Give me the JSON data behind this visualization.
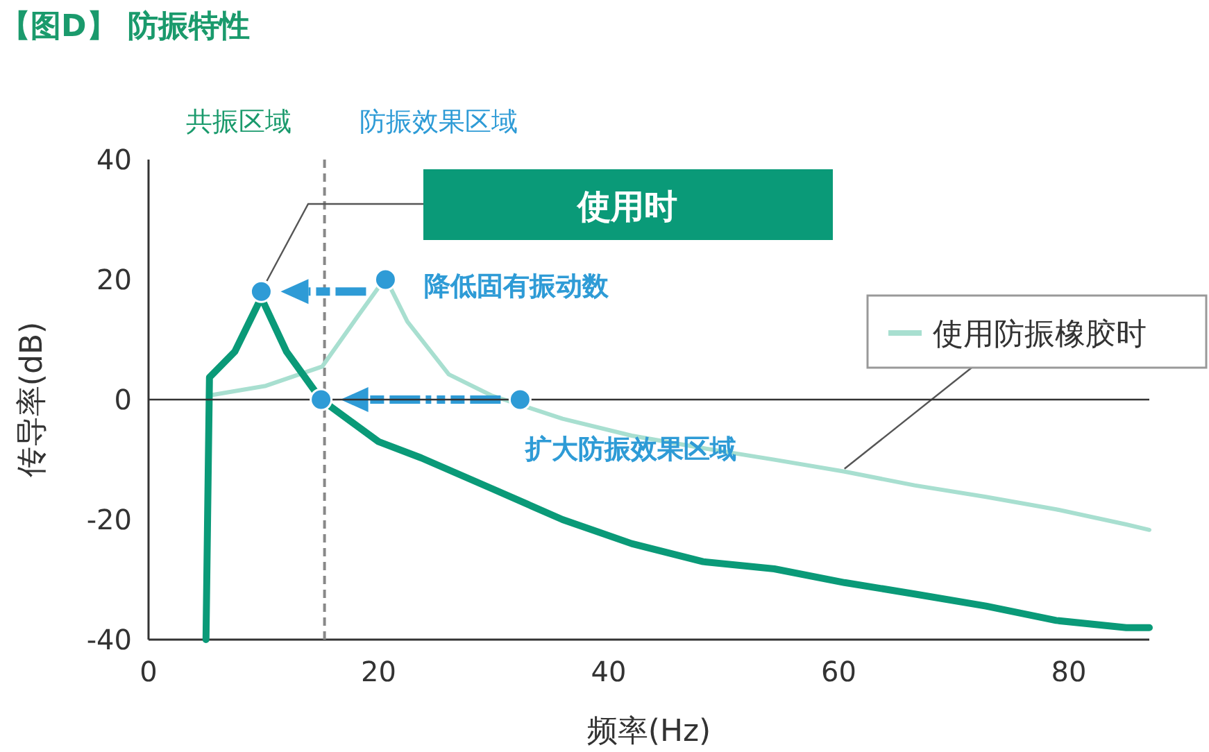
{
  "chart_data": {
    "type": "line",
    "title": "【图D】 防振特性",
    "xlabel": "频率(Hz)",
    "ylabel": "传导率(dB)",
    "xlim": [
      0,
      87
    ],
    "ylim": [
      -40,
      40
    ],
    "xticks": [
      0,
      20,
      40,
      60,
      80
    ],
    "yticks": [
      -40,
      -20,
      0,
      20,
      40
    ],
    "legend": "top right",
    "series": [
      {
        "name": "使用防振橡胶时",
        "color": "#a8dfd0",
        "x": [
          5.3,
          10.2,
          15.1,
          18.2,
          20.6,
          22.5,
          26.1,
          29.8,
          36,
          42,
          48.2,
          54.4,
          60.5,
          66.6,
          72.8,
          78.9,
          85,
          87
        ],
        "values": [
          0.7,
          2.3,
          5.5,
          13.9,
          20.3,
          13,
          4.2,
          0.7,
          -3.2,
          -6,
          -8.1,
          -10,
          -12,
          -14.3,
          -16.2,
          -18.3,
          -20.8,
          -21.7
        ]
      },
      {
        "name": "使用时",
        "color": "#0a9a78",
        "x": [
          5,
          5.3,
          7.5,
          9.8,
          12,
          15,
          20,
          23.7,
          29.8,
          36,
          42,
          48.2,
          54.4,
          60.5,
          66.6,
          72.8,
          78.9,
          85,
          87
        ],
        "values": [
          -40,
          3.7,
          8,
          17,
          8,
          0,
          -7,
          -9.7,
          -14.8,
          -20,
          -24,
          -27,
          -28.2,
          -30.5,
          -32.4,
          -34.4,
          -36.8,
          -38,
          -38
        ]
      },
      {
        "type": "scatter",
        "marker": "circle",
        "color": "#2e9bd6",
        "x": [
          9.8,
          20.6,
          15,
          32.3
        ],
        "values": [
          18,
          20,
          0,
          0
        ]
      }
    ],
    "ref_lines": [
      {
        "axis": "x",
        "value": 15.3,
        "color": "#888888",
        "line_style": "dashed"
      },
      {
        "axis": "y",
        "value": 0
      }
    ],
    "annotations": [
      "共振区域",
      "防振效果区域",
      {
        "text": "降低固有振动数",
        "x": 20.6,
        "y": 20
      },
      {
        "text": "扩大防振效果区域",
        "x": 32.3,
        "y": 0
      }
    ]
  }
}
